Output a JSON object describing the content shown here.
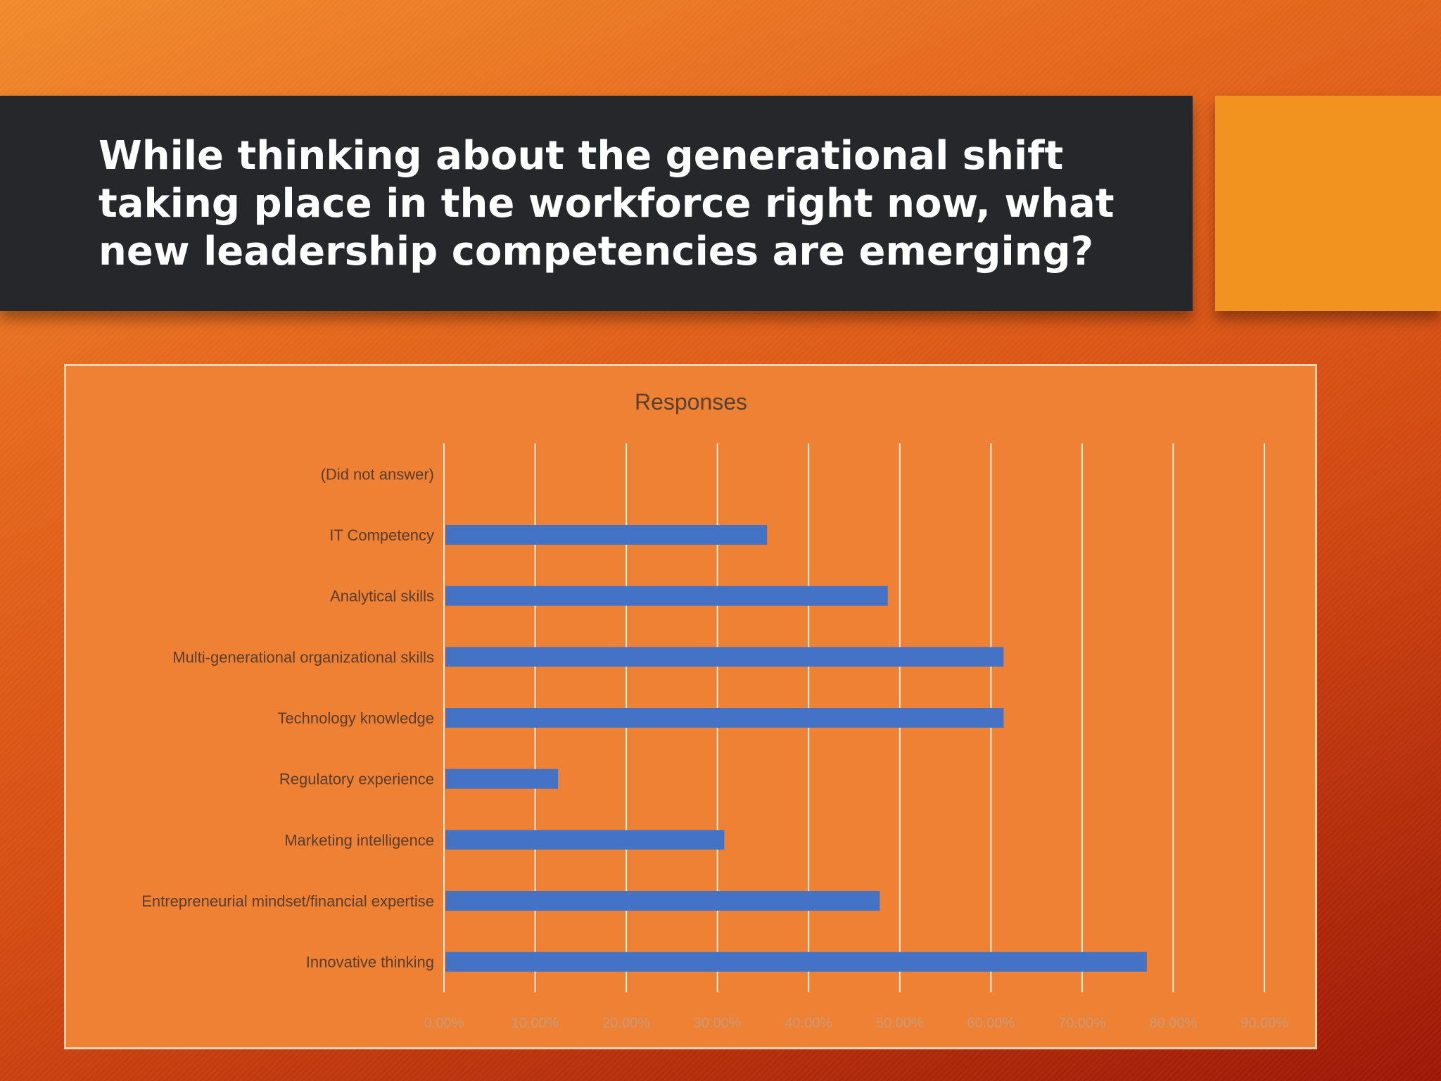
{
  "slide": {
    "title": "While thinking about the generational shift taking place in the workforce right now, what new leadership competencies are emerging?"
  },
  "colors": {
    "title_bar": "#26272b",
    "accent": "#f2931f",
    "chart_background": "#ee8133",
    "bar": "#4472c4",
    "gridline": "#f6efe0"
  },
  "chart_data": {
    "type": "bar",
    "orientation": "horizontal",
    "title": "Responses",
    "categories": [
      "(Did not answer)",
      "IT Competency",
      "Analytical skills",
      "Multi-generational organizational skills",
      "Technology knowledge",
      "Regulatory experience",
      "Marketing intelligence",
      "Entrepreneurial mindset/financial expertise",
      "Innovative thinking"
    ],
    "values": [
      0,
      35.29,
      48.53,
      61.24,
      61.24,
      12.35,
      30.59,
      47.65,
      76.94
    ],
    "xlim": [
      0,
      90
    ],
    "xticks": [
      "0.00%",
      "10.00%",
      "20.00%",
      "30.00%",
      "40.00%",
      "50.00%",
      "60.00%",
      "70.00%",
      "80.00%",
      "90.00%"
    ],
    "xlabel": "",
    "ylabel": "",
    "grid": true,
    "legend": "none"
  }
}
